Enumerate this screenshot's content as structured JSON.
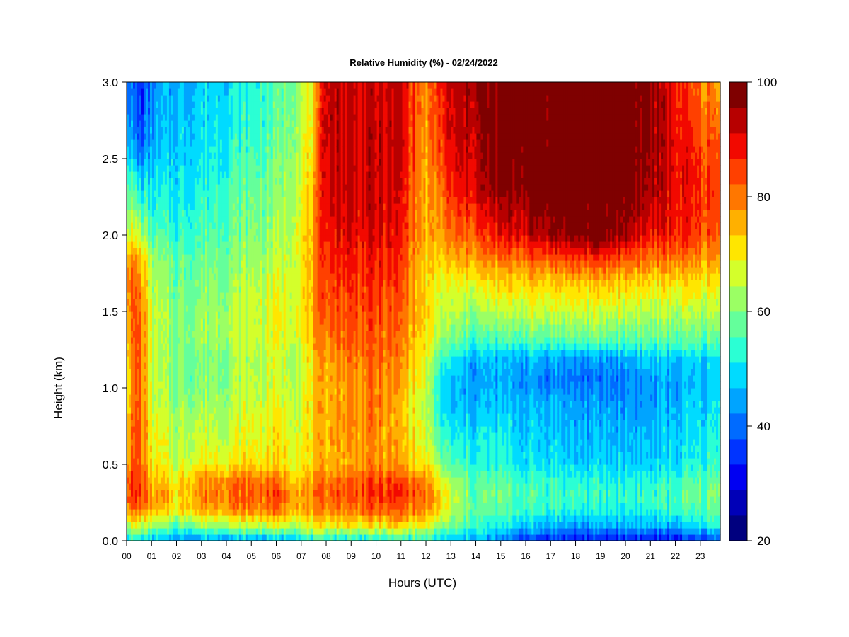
{
  "chart_data": {
    "type": "heatmap",
    "title": "Relative Humidity (%) - 02/24/2022",
    "xlabel": "Hours (UTC)",
    "ylabel": "Height (km)",
    "xlim": [
      0,
      23.8
    ],
    "ylim": [
      0.0,
      3.0
    ],
    "x_ticks": [
      "00",
      "01",
      "02",
      "03",
      "04",
      "05",
      "06",
      "07",
      "08",
      "09",
      "10",
      "11",
      "12",
      "13",
      "14",
      "15",
      "16",
      "17",
      "18",
      "19",
      "20",
      "21",
      "22",
      "23"
    ],
    "y_ticks": [
      "0.0",
      "0.5",
      "1.0",
      "1.5",
      "2.0",
      "2.5",
      "3.0"
    ],
    "colorbar": {
      "min": 20,
      "max": 100,
      "step": 5,
      "tick_labels": [
        "20",
        "40",
        "60",
        "80",
        "100"
      ],
      "colors": [
        "#00007F",
        "#0000B7",
        "#0000F2",
        "#0034FF",
        "#006BFF",
        "#00A4FF",
        "#00DBFF",
        "#2BFFD4",
        "#64FF9B",
        "#9BFF64",
        "#D4FF2B",
        "#FFE600",
        "#FFB000",
        "#FF7700",
        "#FF4000",
        "#F20900",
        "#B70000",
        "#7F0000"
      ]
    },
    "grid": false,
    "legend_placement": "right colorbar",
    "profile_heights_km": [
      0.0,
      0.05,
      0.1,
      0.2,
      0.3,
      0.4,
      0.5,
      0.7,
      0.9,
      1.05,
      1.2,
      1.3,
      1.5,
      1.7,
      1.85,
      2.0,
      2.3,
      2.6,
      3.0
    ],
    "profiles": [
      {
        "hour": 0.0,
        "rh": [
          52,
          60,
          66,
          80,
          86,
          84,
          78,
          76,
          74,
          72,
          74,
          76,
          80,
          82,
          80,
          68,
          60,
          50,
          42
        ]
      },
      {
        "hour": 0.5,
        "rh": [
          50,
          58,
          66,
          80,
          86,
          86,
          84,
          84,
          84,
          84,
          84,
          84,
          82,
          80,
          76,
          66,
          52,
          38,
          34
        ]
      },
      {
        "hour": 1.0,
        "rh": [
          46,
          54,
          62,
          74,
          78,
          74,
          70,
          68,
          66,
          66,
          66,
          66,
          66,
          64,
          62,
          56,
          50,
          44,
          40
        ]
      },
      {
        "hour": 1.5,
        "rh": [
          44,
          50,
          58,
          72,
          76,
          72,
          68,
          66,
          64,
          62,
          62,
          62,
          62,
          60,
          58,
          54,
          50,
          46,
          44
        ]
      },
      {
        "hour": 2.0,
        "rh": [
          44,
          50,
          58,
          70,
          72,
          70,
          66,
          64,
          62,
          60,
          60,
          60,
          60,
          58,
          58,
          54,
          50,
          48,
          46
        ]
      },
      {
        "hour": 3.0,
        "rh": [
          44,
          52,
          62,
          76,
          80,
          78,
          70,
          66,
          62,
          60,
          60,
          62,
          62,
          60,
          58,
          56,
          52,
          50,
          48
        ]
      },
      {
        "hour": 4.0,
        "rh": [
          44,
          54,
          64,
          78,
          82,
          80,
          70,
          66,
          64,
          62,
          62,
          64,
          64,
          62,
          60,
          58,
          56,
          52,
          50
        ]
      },
      {
        "hour": 5.0,
        "rh": [
          44,
          54,
          64,
          80,
          82,
          80,
          72,
          68,
          66,
          64,
          64,
          66,
          66,
          64,
          62,
          60,
          58,
          54,
          52
        ]
      },
      {
        "hour": 6.0,
        "rh": [
          46,
          56,
          66,
          80,
          84,
          80,
          72,
          70,
          68,
          66,
          66,
          68,
          68,
          66,
          64,
          62,
          60,
          58,
          56
        ]
      },
      {
        "hour": 7.0,
        "rh": [
          48,
          58,
          66,
          76,
          78,
          74,
          70,
          68,
          68,
          66,
          66,
          68,
          70,
          70,
          70,
          70,
          68,
          66,
          64
        ]
      },
      {
        "hour": 7.5,
        "rh": [
          50,
          60,
          68,
          76,
          78,
          76,
          72,
          72,
          72,
          72,
          72,
          74,
          76,
          76,
          76,
          76,
          74,
          72,
          70
        ]
      },
      {
        "hour": 8.0,
        "rh": [
          50,
          60,
          70,
          80,
          82,
          80,
          76,
          76,
          76,
          76,
          78,
          80,
          84,
          86,
          88,
          90,
          92,
          94,
          94
        ]
      },
      {
        "hour": 9.0,
        "rh": [
          50,
          60,
          70,
          80,
          84,
          82,
          76,
          78,
          78,
          78,
          80,
          82,
          84,
          86,
          88,
          90,
          92,
          92,
          92
        ]
      },
      {
        "hour": 10.0,
        "rh": [
          50,
          60,
          70,
          82,
          86,
          84,
          78,
          78,
          80,
          80,
          82,
          82,
          84,
          86,
          88,
          90,
          92,
          92,
          92
        ]
      },
      {
        "hour": 11.0,
        "rh": [
          52,
          62,
          72,
          82,
          86,
          84,
          76,
          74,
          74,
          76,
          78,
          80,
          82,
          84,
          86,
          88,
          90,
          92,
          92
        ]
      },
      {
        "hour": 12.0,
        "rh": [
          52,
          60,
          68,
          78,
          80,
          78,
          70,
          66,
          64,
          66,
          68,
          70,
          72,
          72,
          72,
          74,
          74,
          76,
          78
        ]
      },
      {
        "hour": 12.5,
        "rh": [
          48,
          54,
          62,
          72,
          74,
          70,
          62,
          56,
          52,
          52,
          56,
          62,
          66,
          68,
          72,
          76,
          80,
          84,
          86
        ]
      },
      {
        "hour": 13.0,
        "rh": [
          46,
          52,
          58,
          64,
          64,
          62,
          56,
          50,
          46,
          46,
          50,
          58,
          64,
          68,
          74,
          80,
          86,
          90,
          92
        ]
      },
      {
        "hour": 14.0,
        "rh": [
          44,
          50,
          54,
          58,
          58,
          56,
          52,
          50,
          46,
          44,
          46,
          54,
          62,
          70,
          78,
          84,
          92,
          94,
          96
        ]
      },
      {
        "hour": 15.0,
        "rh": [
          40,
          46,
          50,
          56,
          58,
          56,
          52,
          50,
          46,
          44,
          46,
          54,
          64,
          72,
          80,
          88,
          96,
          98,
          98
        ]
      },
      {
        "hour": 16.0,
        "rh": [
          36,
          42,
          48,
          54,
          56,
          54,
          50,
          48,
          46,
          44,
          46,
          56,
          66,
          74,
          82,
          92,
          98,
          100,
          100
        ]
      },
      {
        "hour": 17.0,
        "rh": [
          34,
          40,
          46,
          54,
          56,
          54,
          50,
          48,
          46,
          42,
          46,
          56,
          66,
          74,
          84,
          96,
          100,
          100,
          100
        ]
      },
      {
        "hour": 18.0,
        "rh": [
          32,
          38,
          44,
          52,
          54,
          52,
          48,
          46,
          44,
          40,
          44,
          56,
          66,
          74,
          86,
          98,
          100,
          100,
          100
        ]
      },
      {
        "hour": 19.0,
        "rh": [
          32,
          38,
          44,
          52,
          54,
          52,
          48,
          46,
          44,
          40,
          44,
          56,
          66,
          74,
          86,
          98,
          100,
          100,
          100
        ]
      },
      {
        "hour": 20.0,
        "rh": [
          34,
          40,
          46,
          52,
          54,
          52,
          48,
          46,
          44,
          42,
          46,
          56,
          66,
          74,
          84,
          96,
          100,
          100,
          100
        ]
      },
      {
        "hour": 21.0,
        "rh": [
          32,
          38,
          46,
          52,
          54,
          52,
          48,
          46,
          44,
          44,
          48,
          56,
          64,
          72,
          80,
          88,
          94,
          96,
          96
        ]
      },
      {
        "hour": 22.0,
        "rh": [
          32,
          38,
          46,
          54,
          56,
          54,
          50,
          48,
          46,
          44,
          48,
          56,
          64,
          72,
          80,
          88,
          90,
          90,
          88
        ]
      },
      {
        "hour": 23.0,
        "rh": [
          36,
          42,
          50,
          56,
          58,
          56,
          52,
          50,
          48,
          46,
          48,
          56,
          64,
          72,
          78,
          84,
          86,
          84,
          80
        ]
      },
      {
        "hour": 23.8,
        "rh": [
          38,
          44,
          52,
          58,
          60,
          58,
          54,
          52,
          50,
          48,
          50,
          56,
          64,
          70,
          76,
          82,
          84,
          82,
          76
        ]
      }
    ]
  }
}
